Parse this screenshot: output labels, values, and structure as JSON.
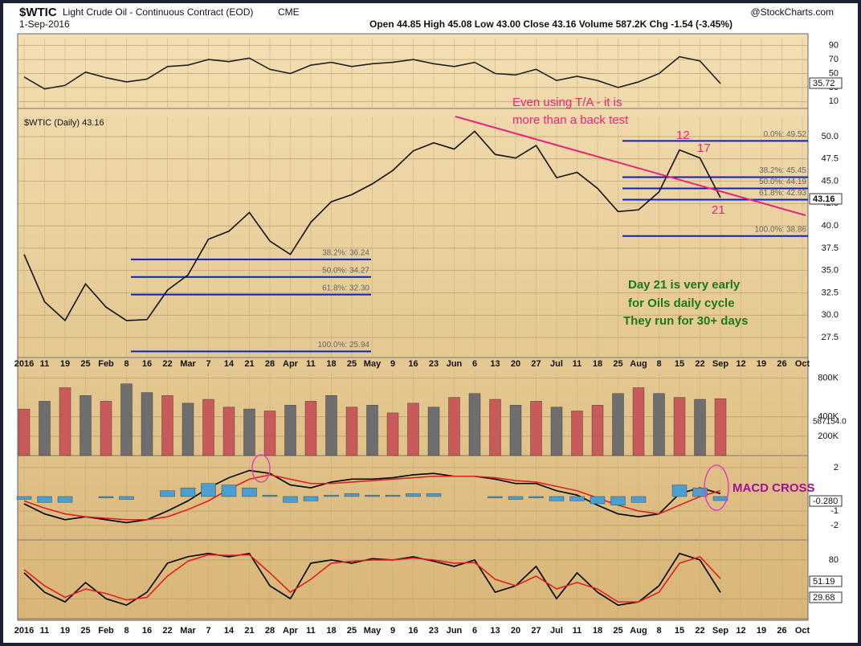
{
  "header": {
    "symbol": "$WTIC",
    "name": "Light Crude Oil - Continuous Contract (EOD)",
    "exchange": "CME",
    "date": "1-Sep-2016",
    "quote": "Open 44.85  High 45.08  Low 43.00  Close 43.16  Volume 587.2K  Chg -1.54 (-3.45%)",
    "source": "@StockCharts.com"
  },
  "chart_data": [
    {
      "type": "line",
      "ylim": [
        0,
        100
      ],
      "yticks": [
        10,
        30,
        50,
        70,
        90
      ],
      "grid": true,
      "series": [
        {
          "name": "RSI(14)",
          "color": "#222222",
          "values": [
            45,
            28,
            33,
            52,
            44,
            38,
            42,
            60,
            62,
            70,
            67,
            72,
            56,
            50,
            62,
            66,
            60,
            64,
            66,
            70,
            64,
            60,
            66,
            50,
            48,
            56,
            40,
            46,
            40,
            30,
            38,
            50,
            74,
            68,
            35.72,
            null,
            null,
            null,
            null
          ]
        }
      ],
      "annotations": [
        "35.72"
      ]
    },
    {
      "type": "line",
      "title": "$WTIC (Daily) 43.16",
      "ylim": [
        25.25,
        52.25
      ],
      "yticks": [
        {
          "value": 27.5,
          "label": "27.5"
        },
        {
          "value": 30,
          "label": "30.0"
        },
        {
          "value": 32.5,
          "label": "32.5"
        },
        {
          "value": 35,
          "label": "35.0"
        },
        {
          "value": 37.5,
          "label": "37.5"
        },
        {
          "value": 40,
          "label": "40.0"
        },
        {
          "value": 42.5,
          "label": "42.5"
        },
        {
          "value": 45,
          "label": "45.0"
        },
        {
          "value": 47.5,
          "label": "47.5"
        },
        {
          "value": 50,
          "label": "50.0"
        }
      ],
      "grid": true,
      "categories": [
        "2016",
        "11",
        "19",
        "25",
        "Feb",
        "8",
        "16",
        "22",
        "Mar",
        "7",
        "14",
        "21",
        "28",
        "Apr",
        "11",
        "18",
        "25",
        "May",
        "9",
        "16",
        "23",
        "Jun",
        "6",
        "13",
        "20",
        "27",
        "Jul",
        "11",
        "18",
        "25",
        "Aug",
        "8",
        "15",
        "22",
        "Sep",
        "12",
        "19",
        "26",
        "Oct"
      ],
      "series": [
        {
          "name": "Close",
          "color": "#111111",
          "values": [
            36.8,
            31.5,
            29.4,
            33.5,
            30.9,
            29.4,
            29.5,
            32.8,
            34.5,
            38.5,
            39.4,
            41.5,
            38.3,
            36.8,
            40.4,
            42.7,
            43.5,
            44.7,
            46.2,
            48.4,
            49.3,
            48.6,
            50.6,
            48.0,
            47.6,
            49.0,
            45.4,
            46.0,
            44.2,
            41.6,
            41.8,
            43.8,
            48.5,
            47.6,
            43.16,
            null,
            null,
            null,
            null
          ]
        }
      ],
      "fib_levels": [
        {
          "label": "38.2%: 36.24",
          "value": 36.24
        },
        {
          "label": "50.0%: 34.27",
          "value": 34.27
        },
        {
          "label": "61.8%: 32.30",
          "value": 32.3
        },
        {
          "label": "100.0%: 25.94",
          "value": 25.94
        },
        {
          "label": "0.0%: 49.52",
          "value": 49.52
        },
        {
          "label": "38.2%: 45.45",
          "value": 45.45
        },
        {
          "label": "50.0%: 44.19",
          "value": 44.19
        },
        {
          "label": "61.8%: 42.93",
          "value": 42.93
        },
        {
          "label": "100.0%: 38.86",
          "value": 38.86
        }
      ],
      "annotations": [
        "Even using T/A - it is",
        "more than a back test",
        "12",
        "17",
        "21",
        "Day 21 is very early",
        "for Oils daily cycle",
        "They run for 30+ days",
        "43.16"
      ]
    },
    {
      "type": "bar",
      "ylim": [
        0,
        870
      ],
      "yticks": [
        {
          "value": 200,
          "label": "200K"
        },
        {
          "value": 400,
          "label": "400K"
        },
        {
          "value": 800,
          "label": "800K"
        }
      ],
      "grid": true,
      "series": [
        {
          "name": "Volume",
          "values": [
            480,
            560,
            700,
            620,
            560,
            740,
            650,
            620,
            540,
            580,
            500,
            480,
            460,
            520,
            560,
            620,
            500,
            520,
            440,
            540,
            500,
            600,
            640,
            580,
            520,
            560,
            500,
            460,
            520,
            640,
            700,
            640,
            600,
            580,
            587,
            null,
            null,
            null,
            null
          ],
          "colors": [
            "#c85a5a",
            "#6e6e6e",
            "#c85a5a",
            "#6e6e6e",
            "#c85a5a",
            "#6e6e6e",
            "#6e6e6e",
            "#c85a5a",
            "#6e6e6e",
            "#c85a5a",
            "#c85a5a",
            "#6e6e6e",
            "#c85a5a",
            "#6e6e6e",
            "#c85a5a",
            "#6e6e6e",
            "#c85a5a",
            "#6e6e6e",
            "#c85a5a",
            "#c85a5a",
            "#6e6e6e",
            "#c85a5a",
            "#6e6e6e",
            "#c85a5a",
            "#6e6e6e",
            "#c85a5a",
            "#6e6e6e",
            "#c85a5a",
            "#c85a5a",
            "#6e6e6e",
            "#c85a5a",
            "#6e6e6e",
            "#c85a5a",
            "#6e6e6e",
            "#c85a5a",
            "#c85a5a",
            "#c85a5a",
            "#c85a5a",
            "#c85a5a"
          ]
        }
      ],
      "annotations": [
        "587154.0"
      ]
    },
    {
      "type": "line",
      "ylim": [
        -3,
        2.83
      ],
      "yticks": [
        2,
        -1,
        -2
      ],
      "grid": true,
      "series": [
        {
          "name": "MACD",
          "color": "#000000",
          "values": [
            -0.5,
            -1.2,
            -1.6,
            -1.4,
            -1.6,
            -1.8,
            -1.6,
            -1.0,
            -0.3,
            0.6,
            1.3,
            1.8,
            1.6,
            0.8,
            0.6,
            1.0,
            1.2,
            1.2,
            1.3,
            1.5,
            1.6,
            1.4,
            1.4,
            1.2,
            0.9,
            0.9,
            0.4,
            0.1,
            -0.6,
            -1.2,
            -1.4,
            -1.2,
            0.2,
            0.6,
            0.2,
            null,
            null,
            null,
            null
          ]
        },
        {
          "name": "Signal",
          "color": "#e02020",
          "values": [
            -0.3,
            -0.8,
            -1.2,
            -1.4,
            -1.5,
            -1.6,
            -1.6,
            -1.4,
            -0.9,
            -0.3,
            0.5,
            1.2,
            1.5,
            1.2,
            0.9,
            0.9,
            1.0,
            1.1,
            1.2,
            1.3,
            1.4,
            1.4,
            1.4,
            1.3,
            1.1,
            1.0,
            0.7,
            0.4,
            -0.1,
            -0.6,
            -1.0,
            -1.2,
            -0.6,
            0.0,
            0.4,
            null,
            null,
            null,
            null
          ]
        },
        {
          "name": "Histogram",
          "color": "#4a9fd0",
          "bars": true,
          "values": [
            -0.2,
            -0.4,
            -0.4,
            0,
            -0.1,
            -0.2,
            0,
            0.4,
            0.6,
            0.9,
            0.8,
            0.6,
            0.1,
            -0.4,
            -0.3,
            0.1,
            0.2,
            0.1,
            0.1,
            0.2,
            0.2,
            0,
            0,
            -0.1,
            -0.2,
            -0.1,
            -0.3,
            -0.3,
            -0.5,
            -0.6,
            -0.4,
            0,
            0.8,
            0.6,
            -0.28,
            null,
            null,
            null,
            null
          ]
        }
      ],
      "annotations": [
        "MACD CROSS",
        "-0.280"
      ]
    },
    {
      "type": "line",
      "ylim": [
        -11,
        111
      ],
      "yticks": [
        20,
        80
      ],
      "grid": true,
      "categories": [
        "2016",
        "11",
        "19",
        "25",
        "Feb",
        "8",
        "16",
        "22",
        "Mar",
        "7",
        "14",
        "21",
        "28",
        "Apr",
        "11",
        "18",
        "25",
        "May",
        "9",
        "16",
        "23",
        "Jun",
        "6",
        "13",
        "20",
        "27",
        "Jul",
        "11",
        "18",
        "25",
        "Aug",
        "8",
        "15",
        "22",
        "Sep",
        "12",
        "19",
        "26",
        "Oct"
      ],
      "series": [
        {
          "name": "%K",
          "color": "#000000",
          "values": [
            60,
            30,
            15,
            45,
            20,
            10,
            30,
            75,
            85,
            90,
            85,
            90,
            40,
            20,
            75,
            80,
            75,
            82,
            80,
            85,
            78,
            70,
            80,
            30,
            40,
            70,
            20,
            60,
            30,
            10,
            15,
            40,
            90,
            80,
            29.68,
            null,
            null,
            null,
            null
          ]
        },
        {
          "name": "%D",
          "color": "#e02020",
          "values": [
            65,
            40,
            22,
            35,
            28,
            18,
            22,
            55,
            78,
            88,
            87,
            88,
            60,
            30,
            50,
            75,
            78,
            80,
            80,
            83,
            80,
            75,
            76,
            50,
            40,
            55,
            35,
            45,
            35,
            15,
            15,
            30,
            75,
            85,
            51.19,
            null,
            null,
            null,
            null
          ]
        }
      ],
      "annotations": [
        "51.19",
        "29.68"
      ]
    }
  ]
}
